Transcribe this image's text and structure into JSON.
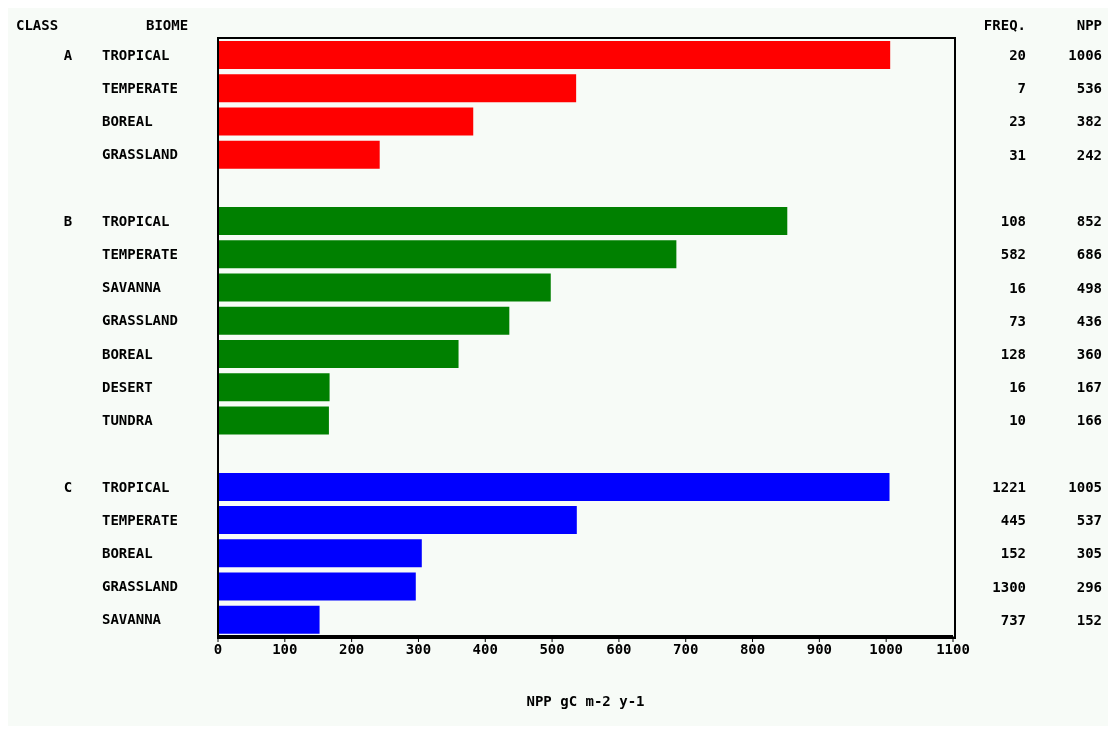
{
  "chart_data": {
    "type": "bar",
    "orientation": "horizontal",
    "xlabel": "NPP gC m-2 y-1",
    "categories": [
      "TROPICAL",
      "TEMPERATE",
      "BOREAL",
      "GRASSLAND",
      null,
      "TROPICAL",
      "TEMPERATE",
      "SAVANNA",
      "GRASSLAND",
      "BOREAL",
      "DESERT",
      "TUNDRA",
      null,
      "TROPICAL",
      "TEMPERATE",
      "BOREAL",
      "GRASSLAND",
      "SAVANNA"
    ],
    "values": [
      1006,
      536,
      382,
      242,
      null,
      852,
      686,
      498,
      436,
      360,
      167,
      166,
      null,
      1005,
      537,
      305,
      296,
      152
    ],
    "colors": [
      "#ff0000",
      "#ff0000",
      "#ff0000",
      "#ff0000",
      null,
      "#008000",
      "#008000",
      "#008000",
      "#008000",
      "#008000",
      "#008000",
      "#008000",
      null,
      "#0000ff",
      "#0000ff",
      "#0000ff",
      "#0000ff",
      "#0000ff"
    ],
    "data_labels": true,
    "xlim": [
      0,
      1100
    ],
    "xticks": [
      0,
      100,
      200,
      300,
      400,
      500,
      600,
      700,
      800,
      900,
      1000,
      1100
    ],
    "grid": false,
    "legend": false,
    "annotations": [
      "CLASS",
      "BIOME",
      "FREQ.",
      "NPP",
      "A",
      "B",
      "C",
      "20",
      "7",
      "23",
      "31",
      "108",
      "582",
      "16",
      "73",
      "128",
      "16",
      "10",
      "1221",
      "445",
      "152",
      "1300",
      "737"
    ]
  }
}
